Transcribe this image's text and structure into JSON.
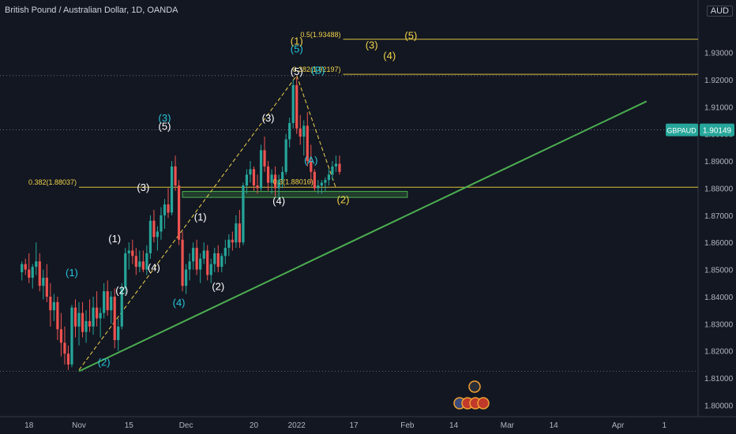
{
  "header": {
    "title": "British Pound / Australian Dollar, 1D, OANDA",
    "currency": "AUD"
  },
  "price_tag": {
    "symbol": "GBPAUD",
    "value": "1.90149"
  },
  "colors": {
    "background": "#131722",
    "up": "#26a69a",
    "down": "#ef5350",
    "trend": "#4caf50",
    "fib": "#d9c03a",
    "cyan": "#26c6da",
    "white": "#ffffff",
    "yellow": "#f0d34a",
    "axis_text": "#b2b5be",
    "grid": "#363a45"
  },
  "chart_data": {
    "type": "candlestick",
    "ylim": [
      1.792,
      1.945
    ],
    "x_ticks": [
      {
        "label": "18",
        "day": -14
      },
      {
        "label": "Nov",
        "day": 0
      },
      {
        "label": "15",
        "day": 14
      },
      {
        "label": "Dec",
        "day": 30
      },
      {
        "label": "20",
        "day": 49
      },
      {
        "label": "2022",
        "day": 61
      },
      {
        "label": "17",
        "day": 77
      },
      {
        "label": "Feb",
        "day": 92
      },
      {
        "label": "14",
        "day": 105
      },
      {
        "label": "Mar",
        "day": 120
      },
      {
        "label": "14",
        "day": 133
      },
      {
        "label": "Apr",
        "day": 151
      },
      {
        "label": "1",
        "day": 164
      }
    ],
    "y_ticks": [
      "1.93000",
      "1.92000",
      "1.91000",
      "1.90000",
      "1.89000",
      "1.88000",
      "1.87000",
      "1.86000",
      "1.85000",
      "1.84000",
      "1.83000",
      "1.82000",
      "1.81000",
      "1.80000"
    ],
    "candles": [
      [
        -16,
        1.849,
        1.853,
        1.846,
        1.852
      ],
      [
        -15,
        1.852,
        1.854,
        1.848,
        1.85
      ],
      [
        -14,
        1.85,
        1.856,
        1.845,
        1.847
      ],
      [
        -13,
        1.847,
        1.852,
        1.843,
        1.851
      ],
      [
        -12,
        1.851,
        1.86,
        1.848,
        1.853
      ],
      [
        -11,
        1.853,
        1.856,
        1.842,
        1.844
      ],
      [
        -10,
        1.844,
        1.85,
        1.839,
        1.847
      ],
      [
        -9,
        1.847,
        1.852,
        1.838,
        1.84
      ],
      [
        -8,
        1.84,
        1.845,
        1.829,
        1.835
      ],
      [
        -7,
        1.835,
        1.841,
        1.831,
        1.838
      ],
      [
        -6,
        1.838,
        1.84,
        1.824,
        1.828
      ],
      [
        -5,
        1.828,
        1.834,
        1.818,
        1.823
      ],
      [
        -4,
        1.823,
        1.829,
        1.815,
        1.819
      ],
      [
        -3,
        1.819,
        1.822,
        1.813,
        1.815
      ],
      [
        -2,
        1.815,
        1.837,
        1.814,
        1.836
      ],
      [
        -1,
        1.836,
        1.839,
        1.825,
        1.829
      ],
      [
        0,
        1.829,
        1.838,
        1.822,
        1.834
      ],
      [
        1,
        1.834,
        1.838,
        1.825,
        1.827
      ],
      [
        2,
        1.827,
        1.835,
        1.823,
        1.831
      ],
      [
        3,
        1.831,
        1.839,
        1.827,
        1.829
      ],
      [
        4,
        1.829,
        1.84,
        1.826,
        1.836
      ],
      [
        5,
        1.836,
        1.842,
        1.829,
        1.832
      ],
      [
        6,
        1.832,
        1.836,
        1.825,
        1.834
      ],
      [
        7,
        1.834,
        1.845,
        1.832,
        1.842
      ],
      [
        8,
        1.842,
        1.846,
        1.833,
        1.835
      ],
      [
        9,
        1.835,
        1.842,
        1.83,
        1.84
      ],
      [
        10,
        1.84,
        1.843,
        1.821,
        1.824
      ],
      [
        11,
        1.824,
        1.832,
        1.82,
        1.829
      ],
      [
        12,
        1.829,
        1.845,
        1.828,
        1.843
      ],
      [
        13,
        1.843,
        1.858,
        1.841,
        1.856
      ],
      [
        14,
        1.856,
        1.86,
        1.85,
        1.857
      ],
      [
        15,
        1.857,
        1.861,
        1.852,
        1.855
      ],
      [
        16,
        1.855,
        1.858,
        1.848,
        1.851
      ],
      [
        17,
        1.851,
        1.857,
        1.849,
        1.853
      ],
      [
        18,
        1.853,
        1.857,
        1.849,
        1.85
      ],
      [
        19,
        1.85,
        1.859,
        1.848,
        1.856
      ],
      [
        20,
        1.856,
        1.87,
        1.854,
        1.868
      ],
      [
        21,
        1.868,
        1.872,
        1.86,
        1.862
      ],
      [
        22,
        1.862,
        1.866,
        1.857,
        1.864
      ],
      [
        23,
        1.864,
        1.873,
        1.861,
        1.87
      ],
      [
        24,
        1.87,
        1.876,
        1.865,
        1.874
      ],
      [
        25,
        1.874,
        1.88,
        1.869,
        1.871
      ],
      [
        26,
        1.871,
        1.89,
        1.87,
        1.888
      ],
      [
        27,
        1.888,
        1.892,
        1.879,
        1.881
      ],
      [
        28,
        1.881,
        1.883,
        1.859,
        1.861
      ],
      [
        29,
        1.861,
        1.864,
        1.842,
        1.844
      ],
      [
        30,
        1.844,
        1.852,
        1.841,
        1.85
      ],
      [
        31,
        1.85,
        1.856,
        1.846,
        1.853
      ],
      [
        32,
        1.853,
        1.86,
        1.85,
        1.858
      ],
      [
        33,
        1.858,
        1.861,
        1.848,
        1.85
      ],
      [
        34,
        1.85,
        1.856,
        1.845,
        1.854
      ],
      [
        35,
        1.854,
        1.86,
        1.852,
        1.857
      ],
      [
        36,
        1.857,
        1.859,
        1.846,
        1.848
      ],
      [
        37,
        1.848,
        1.854,
        1.845,
        1.852
      ],
      [
        38,
        1.852,
        1.858,
        1.849,
        1.856
      ],
      [
        39,
        1.856,
        1.859,
        1.849,
        1.851
      ],
      [
        40,
        1.851,
        1.856,
        1.849,
        1.855
      ],
      [
        41,
        1.855,
        1.861,
        1.852,
        1.858
      ],
      [
        42,
        1.858,
        1.863,
        1.855,
        1.861
      ],
      [
        43,
        1.861,
        1.864,
        1.857,
        1.86
      ],
      [
        44,
        1.86,
        1.87,
        1.858,
        1.867
      ],
      [
        45,
        1.867,
        1.872,
        1.858,
        1.86
      ],
      [
        46,
        1.86,
        1.882,
        1.859,
        1.881
      ],
      [
        47,
        1.881,
        1.887,
        1.878,
        1.885
      ],
      [
        48,
        1.885,
        1.89,
        1.882,
        1.887
      ],
      [
        49,
        1.887,
        1.888,
        1.879,
        1.881
      ],
      [
        50,
        1.881,
        1.885,
        1.878,
        1.88
      ],
      [
        51,
        1.88,
        1.896,
        1.879,
        1.894
      ],
      [
        52,
        1.894,
        1.899,
        1.886,
        1.888
      ],
      [
        53,
        1.888,
        1.89,
        1.879,
        1.882
      ],
      [
        54,
        1.882,
        1.887,
        1.878,
        1.885
      ],
      [
        55,
        1.885,
        1.888,
        1.877,
        1.88
      ],
      [
        56,
        1.88,
        1.885,
        1.876,
        1.883
      ],
      [
        57,
        1.883,
        1.888,
        1.88,
        1.886
      ],
      [
        58,
        1.886,
        1.9,
        1.885,
        1.898
      ],
      [
        59,
        1.898,
        1.906,
        1.895,
        1.904
      ],
      [
        60,
        1.904,
        1.92,
        1.902,
        1.918
      ],
      [
        61,
        1.918,
        1.921,
        1.9,
        1.902
      ],
      [
        62,
        1.902,
        1.907,
        1.896,
        1.899
      ],
      [
        63,
        1.899,
        1.905,
        1.892,
        1.903
      ],
      [
        64,
        1.903,
        1.908,
        1.888,
        1.89
      ],
      [
        65,
        1.89,
        1.896,
        1.882,
        1.886
      ],
      [
        66,
        1.886,
        1.887,
        1.879,
        1.88
      ],
      [
        67,
        1.88,
        1.883,
        1.878,
        1.881
      ],
      [
        68,
        1.881,
        1.883,
        1.878,
        1.882
      ],
      [
        69,
        1.882,
        1.884,
        1.879,
        1.883
      ],
      [
        70,
        1.883,
        1.887,
        1.881,
        1.885
      ],
      [
        71,
        1.885,
        1.89,
        1.883,
        1.888
      ],
      [
        72,
        1.888,
        1.892,
        1.886,
        1.889
      ],
      [
        73,
        1.889,
        1.892,
        1.885,
        1.886
      ]
    ],
    "trendline": {
      "from": [
        0,
        1.8125
      ],
      "to": [
        159,
        1.912
      ]
    },
    "dashed_lines": [
      {
        "color": "yellow",
        "points": [
          [
            0,
            1.813
          ],
          [
            61,
            1.9215
          ]
        ]
      },
      {
        "color": "yellow",
        "points": [
          [
            61,
            1.9215
          ],
          [
            72,
            1.88
          ]
        ]
      }
    ],
    "fib_lines": [
      {
        "label": "0.5(1.93488)",
        "value": 1.93488,
        "from_day": 74
      },
      {
        "label": "0.382(1.92197)",
        "value": 1.92197,
        "from_day": 74
      },
      {
        "label": "0.382(1.88037)",
        "value": 1.88037,
        "from_day": 0
      }
    ],
    "support_zone": {
      "from_day": 29,
      "to_day": 92,
      "low": 1.8766,
      "high": 1.8788
    },
    "dotted_levels": [
      1.8125,
      1.9215,
      1.9015
    ],
    "annotations": [
      {
        "text": "(1)",
        "day": -2,
        "y": 1.8475,
        "color": "cyan"
      },
      {
        "text": "(2)",
        "day": 7,
        "y": 1.8145,
        "color": "cyan"
      },
      {
        "text": "(1)",
        "day": 10,
        "y": 1.86,
        "color": "white"
      },
      {
        "text": "(2)",
        "day": 12,
        "y": 1.841,
        "color": "white"
      },
      {
        "text": "(3)",
        "day": 18,
        "y": 1.879,
        "color": "white"
      },
      {
        "text": "(4)",
        "day": 21,
        "y": 1.8495,
        "color": "white"
      },
      {
        "text": "(3)",
        "day": 24,
        "y": 1.9045,
        "color": "cyan"
      },
      {
        "text": "(5)",
        "day": 24,
        "y": 1.9015,
        "color": "white"
      },
      {
        "text": "(4)",
        "day": 28,
        "y": 1.8365,
        "color": "cyan"
      },
      {
        "text": "(1)",
        "day": 34,
        "y": 1.868,
        "color": "white"
      },
      {
        "text": "(2)",
        "day": 39,
        "y": 1.8425,
        "color": "white"
      },
      {
        "text": "(3)",
        "day": 53,
        "y": 1.9045,
        "color": "white"
      },
      {
        "text": "(4)",
        "day": 56,
        "y": 1.874,
        "color": "white"
      },
      {
        "text": "0.3(1.88016)",
        "day": 60,
        "y": 1.8815,
        "color": "yellow"
      },
      {
        "text": "(5)",
        "day": 61,
        "y": 1.93,
        "color": "cyan"
      },
      {
        "text": "(1)",
        "day": 61,
        "y": 1.933,
        "color": "yellow"
      },
      {
        "text": "(5)",
        "day": 61,
        "y": 1.9217,
        "color": "white"
      },
      {
        "text": "(B)",
        "day": 67,
        "y": 1.9222,
        "color": "cyan"
      },
      {
        "text": "(A)",
        "day": 65,
        "y": 1.889,
        "color": "cyan"
      },
      {
        "text": "(2)",
        "day": 74,
        "y": 1.8745,
        "color": "yellow"
      },
      {
        "text": "(3)",
        "day": 82,
        "y": 1.9315,
        "color": "yellow"
      },
      {
        "text": "(4)",
        "day": 87,
        "y": 1.9275,
        "color": "yellow"
      },
      {
        "text": "(5)",
        "day": 93,
        "y": 1.935,
        "color": "yellow"
      }
    ]
  }
}
